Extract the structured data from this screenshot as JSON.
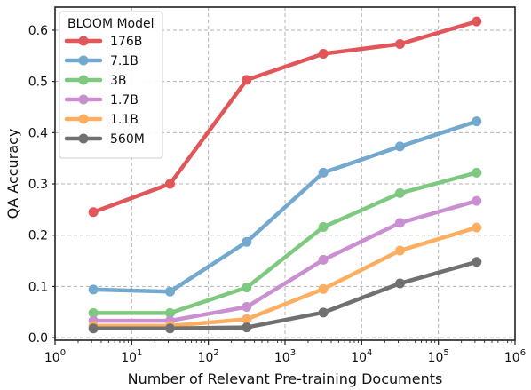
{
  "chart_data": {
    "type": "line",
    "xlabel": "Number of Relevant Pre-training Documents",
    "ylabel": "QA Accuracy",
    "x_scale": "log",
    "xlim": [
      1,
      1000000
    ],
    "ylim": [
      -0.005,
      0.645
    ],
    "x_ticks": [
      1,
      10,
      100,
      1000,
      10000,
      100000,
      1000000
    ],
    "x_tick_labels": [
      {
        "base": "10",
        "exp": "0"
      },
      {
        "base": "10",
        "exp": "1"
      },
      {
        "base": "10",
        "exp": "2"
      },
      {
        "base": "10",
        "exp": "3"
      },
      {
        "base": "10",
        "exp": "4"
      },
      {
        "base": "10",
        "exp": "5"
      },
      {
        "base": "10",
        "exp": "6"
      }
    ],
    "y_ticks": [
      0.0,
      0.1,
      0.2,
      0.3,
      0.4,
      0.5,
      0.6
    ],
    "y_tick_labels": [
      "0.0",
      "0.1",
      "0.2",
      "0.3",
      "0.4",
      "0.5",
      "0.6"
    ],
    "grid": true,
    "legend": {
      "title": "BLOOM Model",
      "placement": "top-left"
    },
    "x": [
      3.16,
      31.6,
      316,
      3160,
      31600,
      316000
    ],
    "series": [
      {
        "name": "176B",
        "color": "#e15759",
        "values": [
          0.245,
          0.3,
          0.503,
          0.554,
          0.573,
          0.617
        ]
      },
      {
        "name": "7.1B",
        "color": "#74a9cf",
        "values": [
          0.094,
          0.09,
          0.187,
          0.322,
          0.373,
          0.422
        ]
      },
      {
        "name": "3B",
        "color": "#7dc97f",
        "values": [
          0.048,
          0.048,
          0.098,
          0.216,
          0.282,
          0.322
        ]
      },
      {
        "name": "1.7B",
        "color": "#c98fd0",
        "values": [
          0.033,
          0.033,
          0.06,
          0.152,
          0.224,
          0.267
        ]
      },
      {
        "name": "1.1B",
        "color": "#fdae61",
        "values": [
          0.023,
          0.023,
          0.036,
          0.095,
          0.17,
          0.215
        ]
      },
      {
        "name": "560M",
        "color": "#707070",
        "values": [
          0.018,
          0.018,
          0.02,
          0.049,
          0.106,
          0.148
        ]
      }
    ]
  }
}
